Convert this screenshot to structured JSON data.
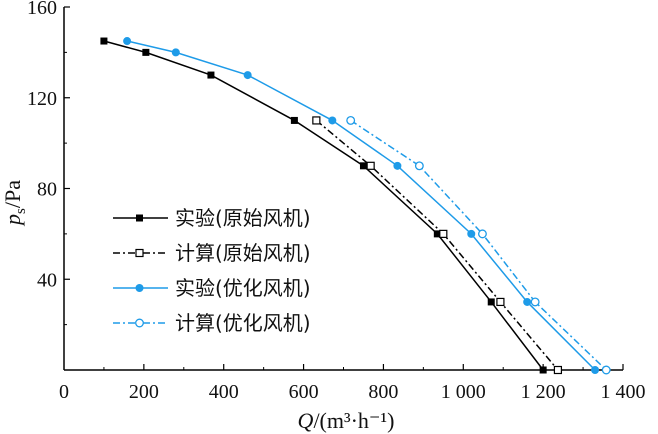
{
  "chart_data": {
    "type": "line",
    "xlabel": "Q/(m³·h⁻¹)",
    "ylabel": "p_s/Pa",
    "xlim": [
      0,
      1400
    ],
    "ylim": [
      0,
      160
    ],
    "x_ticks": [
      "0",
      "200",
      "400",
      "600",
      "800",
      "1 000",
      "1 200",
      "1 400"
    ],
    "x_tick_values": [
      0,
      200,
      400,
      600,
      800,
      1000,
      1200,
      1400
    ],
    "y_ticks": [
      "40",
      "80",
      "120",
      "160"
    ],
    "y_tick_values": [
      40,
      80,
      120,
      160
    ],
    "grid": false,
    "legend_position": "lower-left",
    "series": [
      {
        "name": "实验(原始风机)",
        "color": "#000000",
        "line_style": "solid",
        "marker": "filled-square",
        "points": [
          [
            100,
            145
          ],
          [
            205,
            140
          ],
          [
            368,
            130
          ],
          [
            577,
            110
          ],
          [
            750,
            90
          ],
          [
            935,
            60
          ],
          [
            1070,
            30
          ],
          [
            1200,
            0
          ]
        ]
      },
      {
        "name": "计算(原始风机)",
        "color": "#000000",
        "line_style": "dash-dot",
        "marker": "open-square",
        "points": [
          [
            632,
            110
          ],
          [
            768,
            90
          ],
          [
            950,
            60
          ],
          [
            1093,
            30
          ],
          [
            1237,
            0
          ]
        ]
      },
      {
        "name": "实验(优化风机)",
        "color": "#1e9be8",
        "line_style": "solid",
        "marker": "filled-circle",
        "points": [
          [
            158,
            145
          ],
          [
            280,
            140
          ],
          [
            460,
            130
          ],
          [
            672,
            110
          ],
          [
            835,
            90
          ],
          [
            1020,
            60
          ],
          [
            1160,
            30
          ],
          [
            1330,
            0
          ]
        ]
      },
      {
        "name": "计算(优化风机)",
        "color": "#1e9be8",
        "line_style": "dash-dot",
        "marker": "open-circle",
        "points": [
          [
            718,
            110
          ],
          [
            890,
            90
          ],
          [
            1048,
            60
          ],
          [
            1180,
            30
          ],
          [
            1358,
            0
          ]
        ]
      }
    ]
  }
}
